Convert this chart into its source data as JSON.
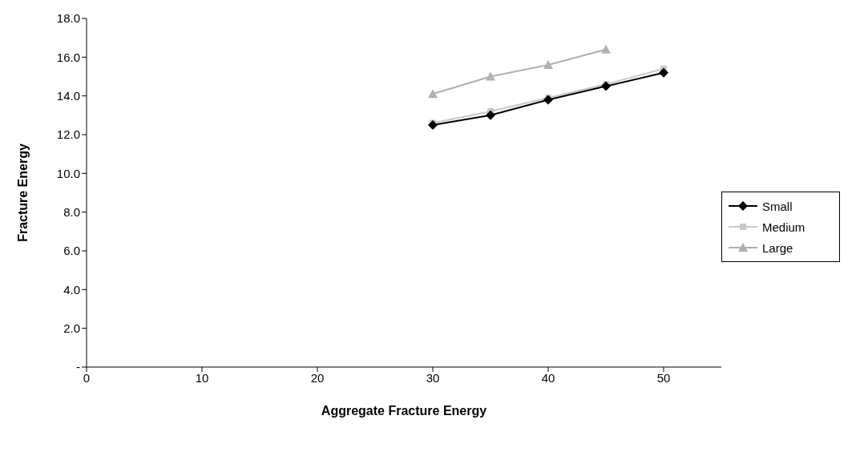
{
  "chart_data": {
    "type": "line",
    "xlabel": "Aggregate Fracture Energy",
    "ylabel": "Fracture Energy",
    "x": [
      30,
      35,
      40,
      45,
      50
    ],
    "series": [
      {
        "name": "Small",
        "color": "#000000",
        "values": [
          12.5,
          13.0,
          13.8,
          14.5,
          15.2
        ],
        "marker": "diamond"
      },
      {
        "name": "Medium",
        "color": "#c8c8c8",
        "values": [
          12.6,
          13.2,
          13.9,
          14.6,
          15.4
        ],
        "marker": "square"
      },
      {
        "name": "Large",
        "color": "#b0b0b0",
        "values": [
          14.1,
          15.0,
          15.6,
          16.4,
          null
        ],
        "marker": "triangle"
      }
    ],
    "xlim": [
      0,
      55
    ],
    "xticks": [
      0,
      10,
      20,
      30,
      40,
      50
    ],
    "ylim": [
      0,
      18
    ],
    "yticks": [
      {
        "value": 0,
        "label": "-"
      },
      {
        "value": 2,
        "label": "2.0"
      },
      {
        "value": 4,
        "label": "4.0"
      },
      {
        "value": 6,
        "label": "6.0"
      },
      {
        "value": 8,
        "label": "8.0"
      },
      {
        "value": 10,
        "label": "10.0"
      },
      {
        "value": 12,
        "label": "12.0"
      },
      {
        "value": 14,
        "label": "14.0"
      },
      {
        "value": 16,
        "label": "16.0"
      },
      {
        "value": 18,
        "label": "18.0"
      }
    ],
    "grid": false,
    "legend": "right"
  }
}
